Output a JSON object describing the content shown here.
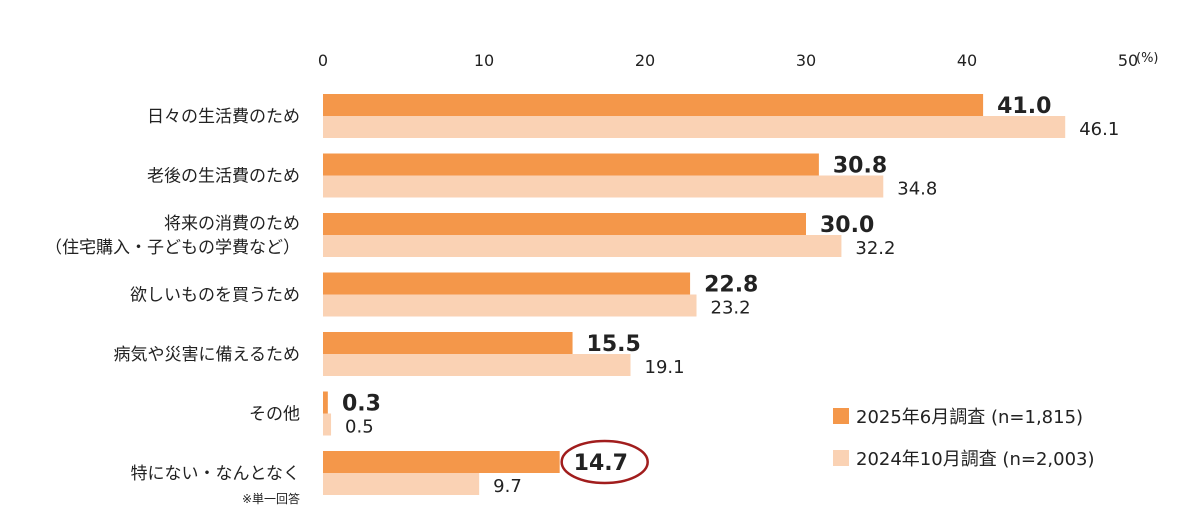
{
  "chart_data": {
    "type": "bar",
    "orientation": "horizontal",
    "unit": "(%)",
    "xlim": [
      0,
      50
    ],
    "x_ticks": [
      "0",
      "10",
      "20",
      "30",
      "40",
      "50"
    ],
    "categories": [
      [
        "日々の生活費のため"
      ],
      [
        "老後の生活費のため"
      ],
      [
        "将来の消費のため",
        "（住宅購入・子どもの学費など）"
      ],
      [
        "欲しいものを買うため"
      ],
      [
        "病気や災害に備えるため"
      ],
      [
        "その他"
      ],
      [
        "特にない・なんとなく"
      ]
    ],
    "category_note": "※単一回答",
    "series": [
      {
        "name": "2025年6月調査 (n=1,815)",
        "values": [
          41.0,
          30.8,
          30.0,
          22.8,
          15.5,
          0.3,
          14.7
        ],
        "labels": [
          "41.0",
          "30.8",
          "30.0",
          "22.8",
          "15.5",
          "0.3",
          "14.7"
        ],
        "color": "#f4974a"
      },
      {
        "name": "2024年10月調査 (n=2,003)",
        "values": [
          46.1,
          34.8,
          32.2,
          23.2,
          19.1,
          0.5,
          9.7
        ],
        "labels": [
          "46.1",
          "34.8",
          "32.2",
          "23.2",
          "19.1",
          "0.5",
          "9.7"
        ],
        "color": "#fad2b4"
      }
    ],
    "highlight_color": "#a11d1d",
    "grid": false,
    "legend_position": "bottom-right"
  }
}
